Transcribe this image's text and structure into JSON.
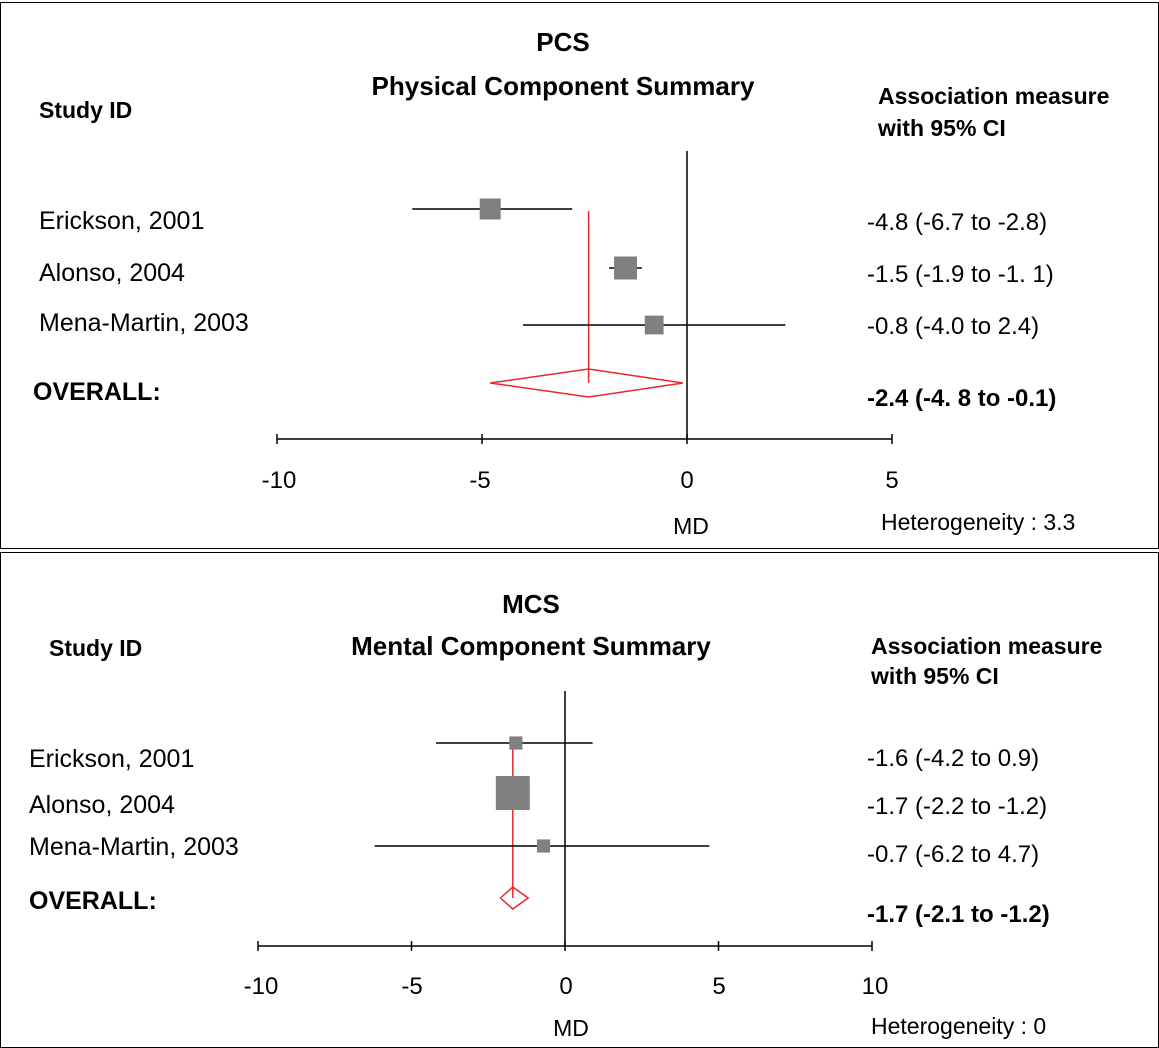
{
  "chart_data": [
    {
      "type": "forest",
      "title": [
        "PCS",
        "Physical Component Summary"
      ],
      "study_header": "Study ID",
      "estimate_header": [
        "Association measure",
        "with 95% CI"
      ],
      "xlabel": "MD",
      "xlim": [
        -10,
        5
      ],
      "xticks": [
        -10,
        -5,
        0,
        5
      ],
      "studies": [
        {
          "label": "Erickson,  2001",
          "md": -4.8,
          "lower": -6.7,
          "upper": -2.8,
          "ci_text": "-4.8 (-6.7  to  -2.8)",
          "weight": 1.0
        },
        {
          "label": "Alonso, 2004",
          "md": -1.5,
          "lower": -1.9,
          "upper": -1.1,
          "ci_text": "-1.5 (-1.9  to  -1. 1)",
          "weight": 1.2
        },
        {
          "label": "Mena-Martin,  2003",
          "md": -0.8,
          "lower": -4.0,
          "upper": 2.4,
          "ci_text": "-0.8 (-4.0  to  2.4)",
          "weight": 0.8
        }
      ],
      "overall": {
        "label": "OVERALL:",
        "md": -2.4,
        "lower": -4.8,
        "upper": -0.1,
        "ci_text": "-2.4 (-4. 8 to -0.1)"
      },
      "heterogeneity": "Heterogeneity : 3.3"
    },
    {
      "type": "forest",
      "title": [
        "MCS",
        "Mental Component  Summary"
      ],
      "study_header": "Study ID",
      "estimate_header": [
        "Association measure",
        "with 95% CI"
      ],
      "xlabel": "MD",
      "xlim": [
        -10,
        10
      ],
      "xticks": [
        -10,
        -5,
        0,
        5,
        10
      ],
      "studies": [
        {
          "label": "Erickson,  2001",
          "md": -1.6,
          "lower": -4.2,
          "upper": 0.9,
          "ci_text": "-1.6 (-4.2  to  0.9)",
          "weight": 0.3
        },
        {
          "label": "Alonso, 2004",
          "md": -1.7,
          "lower": -2.2,
          "upper": -1.2,
          "ci_text": "-1.7 (-2.2  to  -1.2)",
          "weight": 2.0
        },
        {
          "label": "Mena-Martin,  2003",
          "md": -0.7,
          "lower": -6.2,
          "upper": 4.7,
          "ci_text": "-0.7 (-6.2  to  4.7)",
          "weight": 0.3
        }
      ],
      "overall": {
        "label": "OVERALL:",
        "md": -1.7,
        "lower": -2.1,
        "upper": -1.2,
        "ci_text": "-1.7 (-2.1 to -1.2)"
      },
      "heterogeneity": "Heterogeneity : 0"
    }
  ],
  "colors": {
    "marker": "#808080",
    "line": "#000000",
    "pooled": "#e8282b"
  }
}
